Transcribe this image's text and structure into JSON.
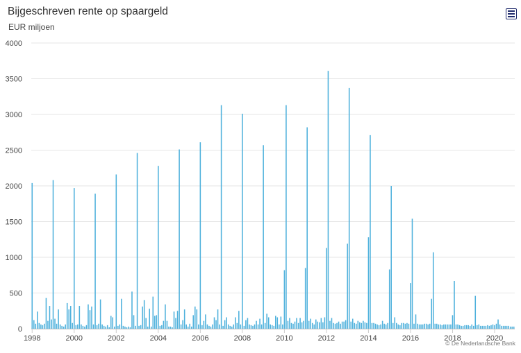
{
  "header": {
    "title": "Bijgeschreven rente op spaargeld",
    "subtitle": "EUR miljoen",
    "menu_icon": "hamburger-menu-icon"
  },
  "credit": "© De Nederlandsche Bank",
  "colors": {
    "bar": "#4fb1dc",
    "grid": "#e6e6e6",
    "axis_text": "#444444"
  },
  "chart_data": {
    "type": "bar",
    "title": "Bijgeschreven rente op spaargeld",
    "ylabel": "EUR miljoen",
    "xlabel": "",
    "ylim": [
      0,
      4000
    ],
    "yticks": [
      0,
      500,
      1000,
      1500,
      2000,
      2500,
      3000,
      3500,
      4000
    ],
    "xlim": [
      "1998-01",
      "2020-12"
    ],
    "xticks": [
      "1998",
      "2000",
      "2002",
      "2004",
      "2006",
      "2008",
      "2010",
      "2012",
      "2014",
      "2016",
      "2018",
      "2020"
    ],
    "grid": true,
    "legend": "none",
    "frequency": "monthly",
    "series": [
      {
        "values": [
          2040,
          120,
          70,
          240,
          80,
          60,
          50,
          70,
          430,
          110,
          320,
          130,
          2080,
          140,
          70,
          270,
          60,
          40,
          30,
          60,
          360,
          270,
          320,
          80,
          1970,
          50,
          60,
          320,
          60,
          40,
          30,
          50,
          340,
          260,
          310,
          60,
          1890,
          50,
          70,
          410,
          60,
          40,
          30,
          50,
          20,
          180,
          160,
          30,
          2160,
          40,
          60,
          420,
          40,
          30,
          20,
          30,
          20,
          520,
          190,
          40,
          2460,
          40,
          50,
          310,
          400,
          150,
          30,
          280,
          30,
          450,
          180,
          190,
          2280,
          40,
          50,
          110,
          340,
          110,
          30,
          30,
          20,
          240,
          150,
          250,
          2510,
          60,
          120,
          270,
          60,
          30,
          70,
          30,
          190,
          310,
          270,
          60,
          2610,
          50,
          110,
          200,
          60,
          40,
          30,
          60,
          160,
          120,
          270,
          60,
          3130,
          40,
          120,
          160,
          60,
          40,
          30,
          60,
          160,
          80,
          250,
          60,
          3010,
          40,
          120,
          150,
          60,
          50,
          40,
          60,
          110,
          60,
          140,
          60,
          2570,
          80,
          210,
          160,
          60,
          50,
          40,
          180,
          160,
          60,
          170,
          60,
          820,
          3130,
          110,
          150,
          80,
          70,
          100,
          150,
          80,
          150,
          90,
          110,
          850,
          2820,
          110,
          140,
          80,
          60,
          130,
          100,
          90,
          150,
          90,
          160,
          1130,
          3610,
          110,
          150,
          80,
          70,
          80,
          100,
          70,
          100,
          100,
          120,
          1190,
          3370,
          100,
          140,
          80,
          70,
          110,
          90,
          80,
          110,
          90,
          80,
          1280,
          2710,
          80,
          80,
          70,
          60,
          50,
          60,
          110,
          70,
          60,
          80,
          830,
          2000,
          80,
          160,
          80,
          60,
          50,
          80,
          80,
          70,
          80,
          70,
          640,
          1540,
          70,
          200,
          70,
          60,
          60,
          60,
          70,
          70,
          60,
          70,
          420,
          1070,
          70,
          70,
          60,
          60,
          50,
          60,
          60,
          60,
          60,
          60,
          190,
          670,
          60,
          60,
          50,
          40,
          40,
          50,
          50,
          50,
          40,
          60,
          40,
          460,
          50,
          60,
          40,
          40,
          40,
          40,
          50,
          40,
          50,
          60,
          50,
          70,
          130,
          60,
          40,
          40,
          40,
          40,
          40,
          30,
          30,
          30
        ]
      }
    ]
  }
}
